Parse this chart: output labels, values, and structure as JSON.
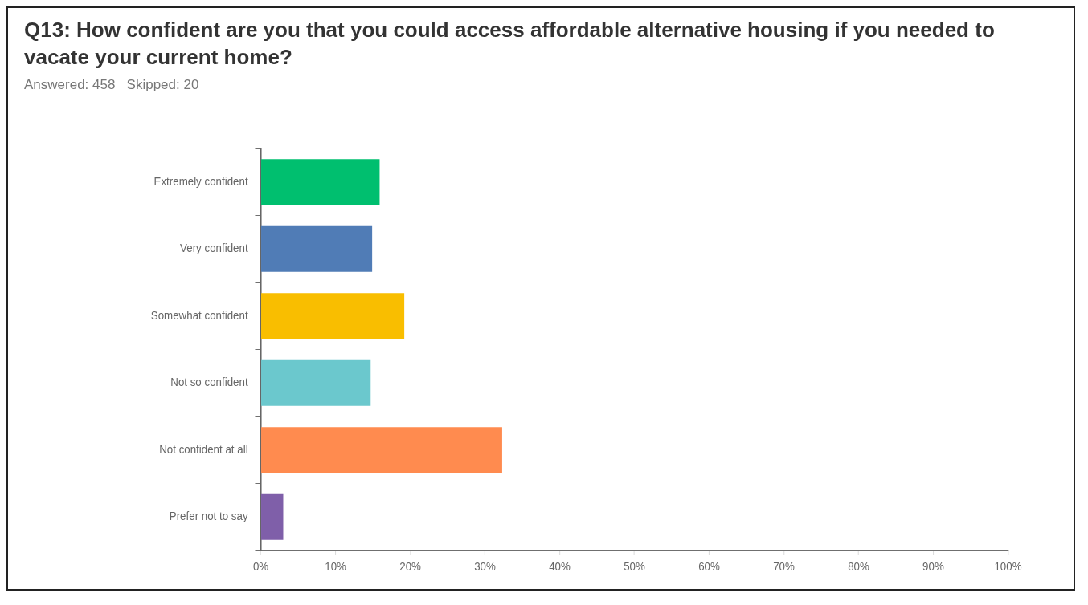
{
  "chart_data": {
    "type": "bar",
    "orientation": "horizontal",
    "title": "Q13: How confident are you that you could access affordable alternative housing if you needed to vacate your current home?",
    "subtitle": "Answered: 458   Skipped: 20",
    "categories": [
      "Extremely confident",
      "Very confident",
      "Somewhat confident",
      "Not so confident",
      "Not confident at all",
      "Prefer not to say"
    ],
    "values": [
      15.9,
      14.9,
      19.2,
      14.7,
      32.3,
      3.0
    ],
    "colors": [
      "#00bf6f",
      "#507cb6",
      "#f9be00",
      "#6bc8cd",
      "#ff8b4f",
      "#7f5fa9"
    ],
    "xlim": [
      0,
      100
    ],
    "xticks": [
      {
        "value": 0,
        "label": "0%"
      },
      {
        "value": 10,
        "label": "10%"
      },
      {
        "value": 20,
        "label": "20%"
      },
      {
        "value": 30,
        "label": "30%"
      },
      {
        "value": 40,
        "label": "40%"
      },
      {
        "value": 50,
        "label": "50%"
      },
      {
        "value": 60,
        "label": "60%"
      },
      {
        "value": 70,
        "label": "70%"
      },
      {
        "value": 80,
        "label": "80%"
      },
      {
        "value": 90,
        "label": "90%"
      },
      {
        "value": 100,
        "label": "100%"
      }
    ],
    "grid": false,
    "legend": false
  }
}
